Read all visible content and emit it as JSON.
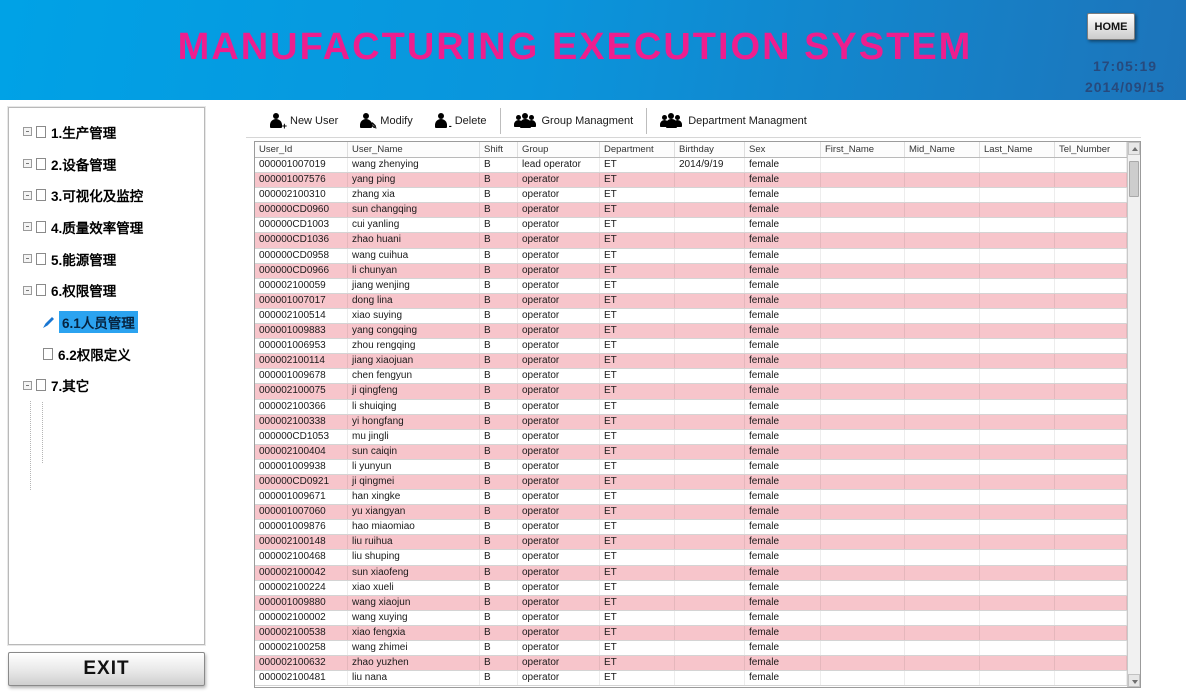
{
  "header": {
    "title": "MANUFACTURING EXECUTION SYSTEM",
    "home_label": "HOME",
    "time": "17:05:19",
    "date": "2014/09/15"
  },
  "sidebar": {
    "items": [
      {
        "label": "1.生产管理",
        "level": 0,
        "selected": false
      },
      {
        "label": "2.设备管理",
        "level": 0,
        "selected": false
      },
      {
        "label": "3.可视化及监控",
        "level": 0,
        "selected": false
      },
      {
        "label": "4.质量效率管理",
        "level": 0,
        "selected": false
      },
      {
        "label": "5.能源管理",
        "level": 0,
        "selected": false
      },
      {
        "label": "6.权限管理",
        "level": 0,
        "selected": false
      },
      {
        "label": "6.1人员管理",
        "level": 1,
        "selected": true
      },
      {
        "label": "6.2权限定义",
        "level": 1,
        "selected": false
      },
      {
        "label": "7.其它",
        "level": 0,
        "selected": false
      }
    ],
    "exit_label": "EXIT"
  },
  "toolbar": {
    "buttons": [
      {
        "label": "New User",
        "icon": "user-add-icon",
        "modifier": "+",
        "group": false
      },
      {
        "label": "Modify",
        "icon": "user-edit-icon",
        "modifier": "✎",
        "group": false
      },
      {
        "label": "Delete",
        "icon": "user-delete-icon",
        "modifier": "-",
        "group": false
      },
      {
        "label": "Group Managment",
        "icon": "group-icon",
        "modifier": "",
        "group": true
      },
      {
        "label": "Department Managment",
        "icon": "department-icon",
        "modifier": "",
        "group": true
      }
    ]
  },
  "table": {
    "columns": [
      "User_Id",
      "User_Name",
      "Shift",
      "Group",
      "Department",
      "Birthday",
      "Sex",
      "First_Name",
      "Mid_Name",
      "Last_Name",
      "Tel_Number"
    ],
    "rows": [
      [
        "000001007019",
        "wang zhenying",
        "B",
        "lead operator",
        "ET",
        "2014/9/19",
        "female",
        "",
        "",
        "",
        ""
      ],
      [
        "000001007576",
        "yang ping",
        "B",
        "operator",
        "ET",
        "",
        "female",
        "",
        "",
        "",
        ""
      ],
      [
        "000002100310",
        "zhang xia",
        "B",
        "operator",
        "ET",
        "",
        "female",
        "",
        "",
        "",
        ""
      ],
      [
        "000000CD0960",
        "sun changqing",
        "B",
        "operator",
        "ET",
        "",
        "female",
        "",
        "",
        "",
        ""
      ],
      [
        "000000CD1003",
        "cui yanling",
        "B",
        "operator",
        "ET",
        "",
        "female",
        "",
        "",
        "",
        ""
      ],
      [
        "000000CD1036",
        "zhao huani",
        "B",
        "operator",
        "ET",
        "",
        "female",
        "",
        "",
        "",
        ""
      ],
      [
        "000000CD0958",
        "wang cuihua",
        "B",
        "operator",
        "ET",
        "",
        "female",
        "",
        "",
        "",
        ""
      ],
      [
        "000000CD0966",
        "li chunyan",
        "B",
        "operator",
        "ET",
        "",
        "female",
        "",
        "",
        "",
        ""
      ],
      [
        "000002100059",
        "jiang wenjing",
        "B",
        "operator",
        "ET",
        "",
        "female",
        "",
        "",
        "",
        ""
      ],
      [
        "000001007017",
        "dong lina",
        "B",
        "operator",
        "ET",
        "",
        "female",
        "",
        "",
        "",
        ""
      ],
      [
        "000002100514",
        "xiao suying",
        "B",
        "operator",
        "ET",
        "",
        "female",
        "",
        "",
        "",
        ""
      ],
      [
        "000001009883",
        "yang congqing",
        "B",
        "operator",
        "ET",
        "",
        "female",
        "",
        "",
        "",
        ""
      ],
      [
        "000001006953",
        "zhou rengqing",
        "B",
        "operator",
        "ET",
        "",
        "female",
        "",
        "",
        "",
        ""
      ],
      [
        "000002100114",
        "jiang xiaojuan",
        "B",
        "operator",
        "ET",
        "",
        "female",
        "",
        "",
        "",
        ""
      ],
      [
        "000001009678",
        "chen fengyun",
        "B",
        "operator",
        "ET",
        "",
        "female",
        "",
        "",
        "",
        ""
      ],
      [
        "000002100075",
        "ji qingfeng",
        "B",
        "operator",
        "ET",
        "",
        "female",
        "",
        "",
        "",
        ""
      ],
      [
        "000002100366",
        "li shuiqing",
        "B",
        "operator",
        "ET",
        "",
        "female",
        "",
        "",
        "",
        ""
      ],
      [
        "000002100338",
        "yi hongfang",
        "B",
        "operator",
        "ET",
        "",
        "female",
        "",
        "",
        "",
        ""
      ],
      [
        "000000CD1053",
        "mu jingli",
        "B",
        "operator",
        "ET",
        "",
        "female",
        "",
        "",
        "",
        ""
      ],
      [
        "000002100404",
        "sun caiqin",
        "B",
        "operator",
        "ET",
        "",
        "female",
        "",
        "",
        "",
        ""
      ],
      [
        "000001009938",
        "li yunyun",
        "B",
        "operator",
        "ET",
        "",
        "female",
        "",
        "",
        "",
        ""
      ],
      [
        "000000CD0921",
        "ji qingmei",
        "B",
        "operator",
        "ET",
        "",
        "female",
        "",
        "",
        "",
        ""
      ],
      [
        "000001009671",
        "han xingke",
        "B",
        "operator",
        "ET",
        "",
        "female",
        "",
        "",
        "",
        ""
      ],
      [
        "000001007060",
        "yu xiangyan",
        "B",
        "operator",
        "ET",
        "",
        "female",
        "",
        "",
        "",
        ""
      ],
      [
        "000001009876",
        "hao miaomiao",
        "B",
        "operator",
        "ET",
        "",
        "female",
        "",
        "",
        "",
        ""
      ],
      [
        "000002100148",
        "liu ruihua",
        "B",
        "operator",
        "ET",
        "",
        "female",
        "",
        "",
        "",
        ""
      ],
      [
        "000002100468",
        "liu shuping",
        "B",
        "operator",
        "ET",
        "",
        "female",
        "",
        "",
        "",
        ""
      ],
      [
        "000002100042",
        "sun xiaofeng",
        "B",
        "operator",
        "ET",
        "",
        "female",
        "",
        "",
        "",
        ""
      ],
      [
        "000002100224",
        "xiao xueli",
        "B",
        "operator",
        "ET",
        "",
        "female",
        "",
        "",
        "",
        ""
      ],
      [
        "000001009880",
        "wang xiaojun",
        "B",
        "operator",
        "ET",
        "",
        "female",
        "",
        "",
        "",
        ""
      ],
      [
        "000002100002",
        "wang xuying",
        "B",
        "operator",
        "ET",
        "",
        "female",
        "",
        "",
        "",
        ""
      ],
      [
        "000002100538",
        "xiao fengxia",
        "B",
        "operator",
        "ET",
        "",
        "female",
        "",
        "",
        "",
        ""
      ],
      [
        "000002100258",
        "wang zhimei",
        "B",
        "operator",
        "ET",
        "",
        "female",
        "",
        "",
        "",
        ""
      ],
      [
        "000002100632",
        "zhao yuzhen",
        "B",
        "operator",
        "ET",
        "",
        "female",
        "",
        "",
        "",
        ""
      ],
      [
        "000002100481",
        "liu nana",
        "B",
        "operator",
        "ET",
        "",
        "female",
        "",
        "",
        "",
        ""
      ]
    ]
  },
  "colors": {
    "header_blue_left": "#00a2e6",
    "header_blue_right": "#1d74ba",
    "title_pink": "#ee1e8e",
    "row_pink": "#f7c5cb",
    "selection_blue": "#2ba3f0",
    "clock_text": "#274a7d"
  }
}
